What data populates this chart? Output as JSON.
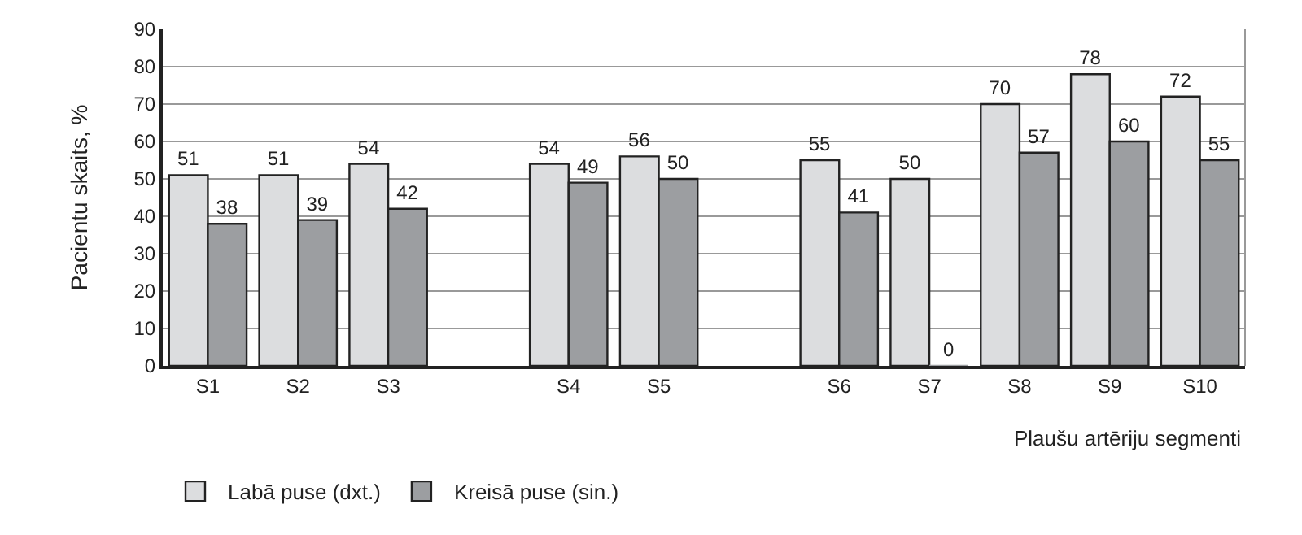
{
  "chart_data": {
    "type": "bar",
    "categories": [
      "S1",
      "S2",
      "S3",
      null,
      "S4",
      "S5",
      null,
      "S6",
      "S7",
      "S8",
      "S9",
      "S10"
    ],
    "series": [
      {
        "name": "Labā puse (dxt.)",
        "color": "#dcdddf",
        "values": [
          51,
          51,
          54,
          null,
          54,
          56,
          null,
          55,
          50,
          70,
          78,
          72
        ]
      },
      {
        "name": "Kreisā puse (sin.)",
        "color": "#9c9ea1",
        "values": [
          38,
          39,
          42,
          null,
          49,
          50,
          null,
          41,
          0,
          57,
          60,
          55
        ]
      }
    ],
    "xlabel": "Plaušu artēriju segmenti",
    "ylabel": "Pacientu skaits, %",
    "ylim": [
      0,
      90
    ],
    "yticks": [
      0,
      10,
      20,
      30,
      40,
      50,
      60,
      70,
      80,
      90
    ],
    "grid": "y",
    "legend": "bottom left",
    "data_labels": true
  }
}
